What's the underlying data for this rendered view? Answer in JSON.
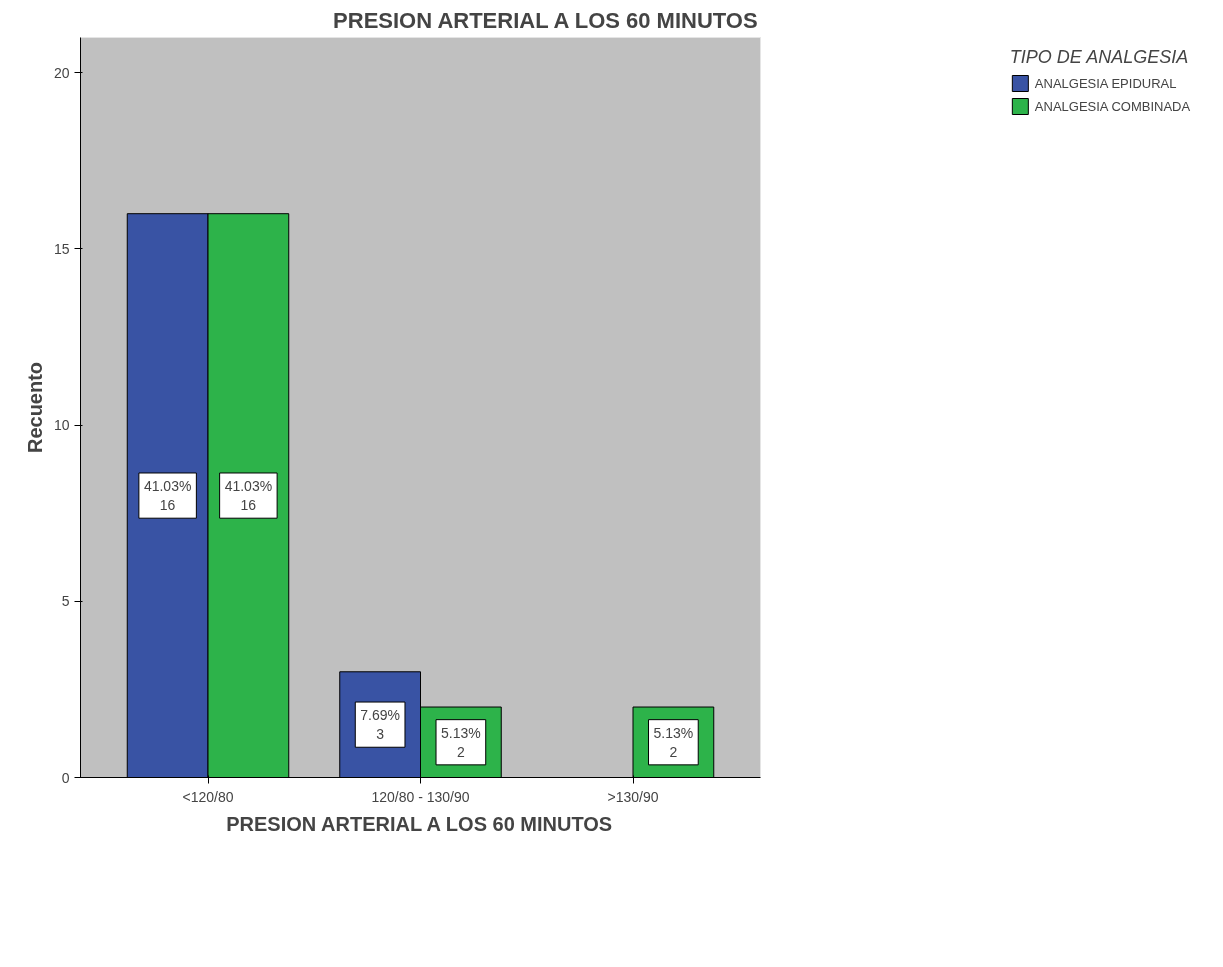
{
  "chart_data": {
    "type": "bar",
    "title": "PRESION ARTERIAL A LOS 60 MINUTOS",
    "xlabel": "PRESION ARTERIAL A LOS 60 MINUTOS",
    "ylabel": "Recuento",
    "legend_title": "TIPO DE ANALGESIA",
    "categories": [
      "<120/80",
      "120/80 - 130/90",
      ">130/90"
    ],
    "series": [
      {
        "name": "ANALGESIA EPIDURAL",
        "color": "#3953a4",
        "values": [
          16,
          3,
          0
        ],
        "value_labels": [
          "41.03%\n16",
          "7.69%\n3",
          null
        ]
      },
      {
        "name": "ANALGESIA COMBINADA",
        "color": "#2db34a",
        "values": [
          16,
          2,
          2
        ],
        "value_labels": [
          "41.03%\n16",
          "5.13%\n2",
          "5.13%\n2"
        ]
      }
    ],
    "ylim": [
      0,
      21
    ],
    "yticks": [
      0,
      5,
      10,
      15,
      20
    ],
    "grid": false,
    "legend": "top right"
  }
}
